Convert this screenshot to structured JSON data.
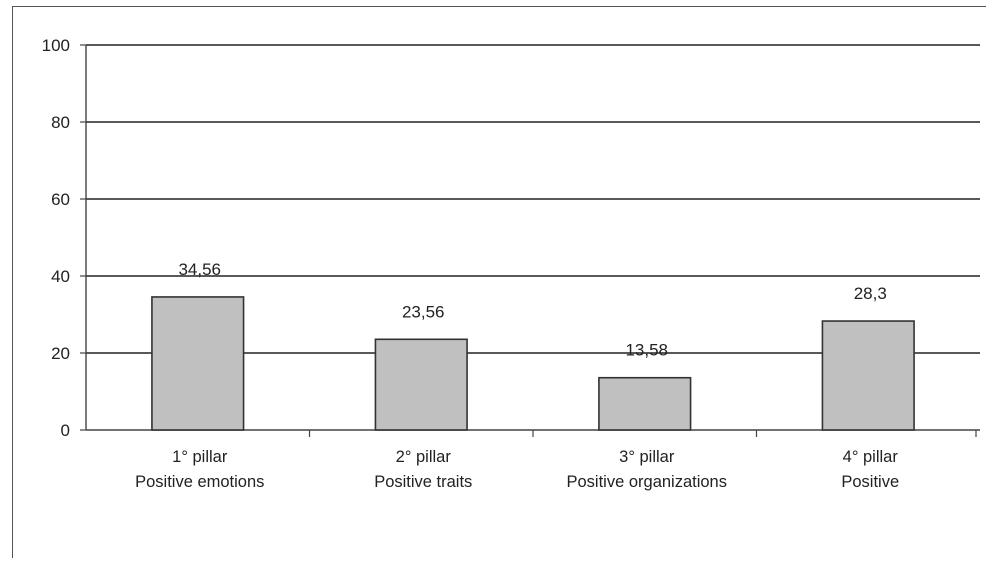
{
  "chart_data": {
    "type": "bar",
    "categories": [
      [
        "1° pillar",
        "Positive emotions"
      ],
      [
        "2° pillar",
        "Positive traits"
      ],
      [
        "3° pillar",
        "Positive organizations"
      ],
      [
        "4° pillar",
        "Positive"
      ]
    ],
    "values": [
      34.56,
      23.56,
      13.58,
      28.3
    ],
    "value_labels": [
      "34,56",
      "23,56",
      "13,58",
      "28,3"
    ],
    "ylim": [
      0,
      100
    ],
    "yticks": [
      0,
      20,
      40,
      60,
      80,
      100
    ],
    "grid": true,
    "legend": "none",
    "colors": {
      "bar_fill": "#c0c0c0",
      "bar_stroke": "#333333",
      "grid": "#222222"
    }
  }
}
